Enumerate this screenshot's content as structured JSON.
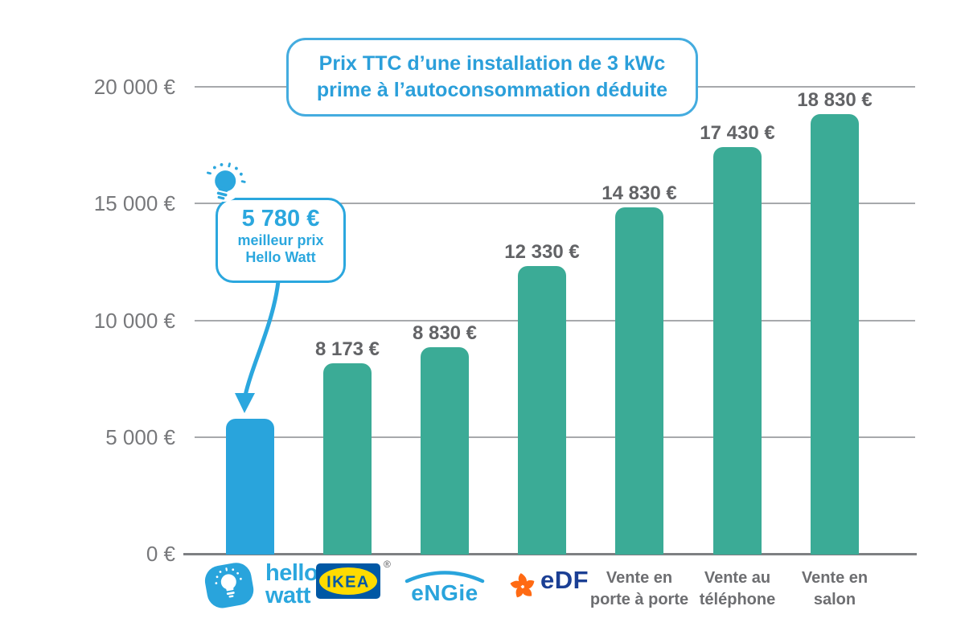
{
  "title": {
    "line1": "Prix TTC d’une installation de 3 kWc",
    "line2": "prime à l’autoconsommation déduite"
  },
  "callout": {
    "price": "5 780 €",
    "line1": "meilleur prix",
    "line2": "Hello Watt"
  },
  "chart_data": {
    "type": "bar",
    "title": "Prix TTC d’une installation de 3 kWc prime à l’autoconsommation déduite",
    "categories": [
      "Hello Watt",
      "IKEA",
      "ENGIE",
      "EDF",
      "Vente en porte à porte",
      "Vente au téléphone",
      "Vente en salon"
    ],
    "values": [
      5780,
      8173,
      8830,
      12330,
      14830,
      17430,
      18830
    ],
    "value_labels": [
      "5 780 €",
      "8 173 €",
      "8 830 €",
      "12 330 €",
      "14 830 €",
      "17 430 €",
      "18 830 €"
    ],
    "ylim": [
      0,
      20000
    ],
    "yticks": [
      0,
      5000,
      10000,
      15000,
      20000
    ],
    "ytick_labels": [
      "0 €",
      "5 000 €",
      "10 000 €",
      "15 000 €",
      "20 000 €"
    ],
    "bar_colors": [
      "#29a4dc",
      "#3bab96",
      "#3bab96",
      "#3bab96",
      "#3bab96",
      "#3bab96",
      "#3bab96"
    ],
    "grid": true,
    "legend": false,
    "annotation": "5 780 € meilleur prix Hello Watt (flèche vers la barre Hello Watt)"
  },
  "logos": {
    "hellowatt": {
      "line1": "hello",
      "line2": "watt"
    },
    "ikea": {
      "text": "IKEA",
      "reg": "®"
    },
    "engie": {
      "text": "eNGie"
    },
    "edf": {
      "text": "eDF"
    }
  },
  "x_axis": {
    "sales": [
      {
        "line1": "Vente en",
        "line2": "porte à porte"
      },
      {
        "line1": "Vente au",
        "line2": "téléphone"
      },
      {
        "line1": "Vente en",
        "line2": "salon"
      }
    ]
  },
  "colors": {
    "highlight_blue": "#29a4dc",
    "bar_green": "#3bab96",
    "grid_gray": "#a7a9ac",
    "axis_gray": "#7e8083",
    "ytick_gray": "#77787b",
    "value_gray": "#626366",
    "label_gray": "#6d6e71",
    "ikea_blue": "#0058a5",
    "ikea_yellow": "#ffdb00",
    "edf_orange": "#ff6a13",
    "edf_navy": "#1b3f94"
  }
}
